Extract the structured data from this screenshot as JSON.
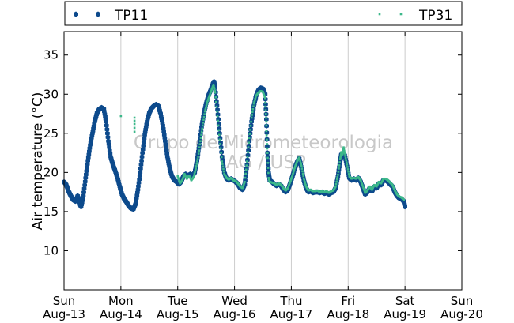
{
  "chart_data": {
    "type": "scatter",
    "ylabel": "Air temperature (°C)",
    "ylim": [
      5,
      38
    ],
    "yticks": [
      10,
      15,
      20,
      25,
      30,
      35
    ],
    "xlim_days": [
      13,
      20
    ],
    "xticks": [
      {
        "day": "Sun",
        "date": "Aug-13"
      },
      {
        "day": "Mon",
        "date": "Aug-14"
      },
      {
        "day": "Tue",
        "date": "Aug-15"
      },
      {
        "day": "Wed",
        "date": "Aug-16"
      },
      {
        "day": "Thu",
        "date": "Aug-17"
      },
      {
        "day": "Fri",
        "date": "Aug-18"
      },
      {
        "day": "Sat",
        "date": "Aug-19"
      },
      {
        "day": "Sun",
        "date": "Aug-20"
      }
    ],
    "grid": "vertical",
    "legend_position": "top",
    "watermark": [
      "Grupo de Micrometeorologia",
      "IAG / USP"
    ],
    "series": [
      {
        "name": "TP11",
        "color": "#0d4a8c",
        "marker": "hexagon",
        "points": [
          [
            13.0,
            18.8
          ],
          [
            13.04,
            18.4
          ],
          [
            13.08,
            17.6
          ],
          [
            13.12,
            17.0
          ],
          [
            13.16,
            16.5
          ],
          [
            13.2,
            16.3
          ],
          [
            13.24,
            17.0
          ],
          [
            13.28,
            16.0
          ],
          [
            13.3,
            15.6
          ],
          [
            13.34,
            17.0
          ],
          [
            13.38,
            19.3
          ],
          [
            13.42,
            21.5
          ],
          [
            13.46,
            23.5
          ],
          [
            13.5,
            25.0
          ],
          [
            13.54,
            26.5
          ],
          [
            13.58,
            27.6
          ],
          [
            13.62,
            28.1
          ],
          [
            13.66,
            28.3
          ],
          [
            13.7,
            28.1
          ],
          [
            13.74,
            26.5
          ],
          [
            13.78,
            24.0
          ],
          [
            13.82,
            22.0
          ],
          [
            13.86,
            21.0
          ],
          [
            13.9,
            20.2
          ],
          [
            13.94,
            19.3
          ],
          [
            13.98,
            18.2
          ],
          [
            14.02,
            17.2
          ],
          [
            14.06,
            16.6
          ],
          [
            14.1,
            16.2
          ],
          [
            14.14,
            15.7
          ],
          [
            14.18,
            15.4
          ],
          [
            14.22,
            15.3
          ],
          [
            14.26,
            16.0
          ],
          [
            14.3,
            17.8
          ],
          [
            14.34,
            20.0
          ],
          [
            14.38,
            22.5
          ],
          [
            14.42,
            24.8
          ],
          [
            14.46,
            26.5
          ],
          [
            14.5,
            27.6
          ],
          [
            14.54,
            28.2
          ],
          [
            14.58,
            28.5
          ],
          [
            14.62,
            28.7
          ],
          [
            14.66,
            28.5
          ],
          [
            14.7,
            27.5
          ],
          [
            14.74,
            26.0
          ],
          [
            14.78,
            24.0
          ],
          [
            14.82,
            22.0
          ],
          [
            14.86,
            20.5
          ],
          [
            14.9,
            19.5
          ],
          [
            14.94,
            19.0
          ],
          [
            14.98,
            18.8
          ],
          [
            15.02,
            18.5
          ],
          [
            15.06,
            18.8
          ],
          [
            15.1,
            19.5
          ],
          [
            15.14,
            19.8
          ],
          [
            15.18,
            19.5
          ],
          [
            15.22,
            19.8
          ],
          [
            15.26,
            19.6
          ],
          [
            15.3,
            20.0
          ],
          [
            15.34,
            21.5
          ],
          [
            15.38,
            23.5
          ],
          [
            15.42,
            25.8
          ],
          [
            15.46,
            27.5
          ],
          [
            15.5,
            28.8
          ],
          [
            15.54,
            29.8
          ],
          [
            15.58,
            30.5
          ],
          [
            15.62,
            31.3
          ],
          [
            15.64,
            31.6
          ],
          [
            15.66,
            30.8
          ],
          [
            15.7,
            28.0
          ],
          [
            15.74,
            25.0
          ],
          [
            15.78,
            22.0
          ],
          [
            15.82,
            20.0
          ],
          [
            15.86,
            19.2
          ],
          [
            15.9,
            19.0
          ],
          [
            15.94,
            19.2
          ],
          [
            15.98,
            19.0
          ],
          [
            16.02,
            18.8
          ],
          [
            16.06,
            18.5
          ],
          [
            16.1,
            18.0
          ],
          [
            16.14,
            17.8
          ],
          [
            16.18,
            18.5
          ],
          [
            16.22,
            21.0
          ],
          [
            16.26,
            24.0
          ],
          [
            16.3,
            26.5
          ],
          [
            16.34,
            28.5
          ],
          [
            16.38,
            29.8
          ],
          [
            16.42,
            30.5
          ],
          [
            16.46,
            30.8
          ],
          [
            16.5,
            30.7
          ],
          [
            16.54,
            30.0
          ],
          [
            16.56,
            26.8
          ],
          [
            16.58,
            22.5
          ],
          [
            16.6,
            20.0
          ],
          [
            16.62,
            19.0
          ],
          [
            16.66,
            18.8
          ],
          [
            16.7,
            18.5
          ],
          [
            16.74,
            18.3
          ],
          [
            16.78,
            18.5
          ],
          [
            16.82,
            18.3
          ],
          [
            16.86,
            17.8
          ],
          [
            16.9,
            17.5
          ],
          [
            16.94,
            17.8
          ],
          [
            16.98,
            18.6
          ],
          [
            17.02,
            19.5
          ],
          [
            17.06,
            20.5
          ],
          [
            17.1,
            21.3
          ],
          [
            17.14,
            21.8
          ],
          [
            17.18,
            20.5
          ],
          [
            17.22,
            19.0
          ],
          [
            17.26,
            18.0
          ],
          [
            17.3,
            17.5
          ],
          [
            17.34,
            17.6
          ],
          [
            17.38,
            17.4
          ],
          [
            17.42,
            17.5
          ],
          [
            17.46,
            17.5
          ],
          [
            17.5,
            17.4
          ],
          [
            17.54,
            17.5
          ],
          [
            17.58,
            17.3
          ],
          [
            17.62,
            17.4
          ],
          [
            17.66,
            17.2
          ],
          [
            17.7,
            17.4
          ],
          [
            17.74,
            17.5
          ],
          [
            17.78,
            18.0
          ],
          [
            17.82,
            19.5
          ],
          [
            17.86,
            21.5
          ],
          [
            17.88,
            22.3
          ],
          [
            17.9,
            22.0
          ],
          [
            17.94,
            22.2
          ],
          [
            17.98,
            20.8
          ],
          [
            18.02,
            19.3
          ],
          [
            18.06,
            19.0
          ],
          [
            18.1,
            19.2
          ],
          [
            18.14,
            19.0
          ],
          [
            18.18,
            19.3
          ],
          [
            18.22,
            18.8
          ],
          [
            18.26,
            18.0
          ],
          [
            18.3,
            17.2
          ],
          [
            18.34,
            17.5
          ],
          [
            18.38,
            18.0
          ],
          [
            18.42,
            17.6
          ],
          [
            18.46,
            18.2
          ],
          [
            18.5,
            18.0
          ],
          [
            18.54,
            18.6
          ],
          [
            18.58,
            18.4
          ],
          [
            18.62,
            19.0
          ],
          [
            18.66,
            19.0
          ],
          [
            18.7,
            18.8
          ],
          [
            18.74,
            18.5
          ],
          [
            18.78,
            18.2
          ],
          [
            18.82,
            17.5
          ],
          [
            18.86,
            17.0
          ],
          [
            18.9,
            16.7
          ],
          [
            18.94,
            16.6
          ],
          [
            18.98,
            16.3
          ],
          [
            19.0,
            15.6
          ]
        ]
      },
      {
        "name": "TP31",
        "color": "#3cb88a",
        "marker": "square",
        "points": [
          [
            14.0,
            27.2
          ],
          [
            14.24,
            27.0
          ],
          [
            14.24,
            26.6
          ],
          [
            14.24,
            26.2
          ],
          [
            14.24,
            25.7
          ],
          [
            14.24,
            25.2
          ],
          [
            15.0,
            19.5
          ],
          [
            15.04,
            18.6
          ],
          [
            15.08,
            19.0
          ],
          [
            15.12,
            19.8
          ],
          [
            15.16,
            19.2
          ],
          [
            15.2,
            19.6
          ],
          [
            15.24,
            19.0
          ],
          [
            15.28,
            19.4
          ],
          [
            15.32,
            20.5
          ],
          [
            15.36,
            22.0
          ],
          [
            15.4,
            24.0
          ],
          [
            15.44,
            26.0
          ],
          [
            15.48,
            27.8
          ],
          [
            15.52,
            29.0
          ],
          [
            15.56,
            29.8
          ],
          [
            15.6,
            30.6
          ],
          [
            15.63,
            31.2
          ],
          [
            15.66,
            30.2
          ],
          [
            15.7,
            27.2
          ],
          [
            15.74,
            24.2
          ],
          [
            15.78,
            21.4
          ],
          [
            15.82,
            19.8
          ],
          [
            15.86,
            19.3
          ],
          [
            15.9,
            19.1
          ],
          [
            15.94,
            19.3
          ],
          [
            15.98,
            19.0
          ],
          [
            16.02,
            18.9
          ],
          [
            16.06,
            18.6
          ],
          [
            16.1,
            18.2
          ],
          [
            16.14,
            18.0
          ],
          [
            16.18,
            18.8
          ],
          [
            16.22,
            21.4
          ],
          [
            16.26,
            24.4
          ],
          [
            16.3,
            27.0
          ],
          [
            16.34,
            28.8
          ],
          [
            16.38,
            29.8
          ],
          [
            16.42,
            30.2
          ],
          [
            16.46,
            30.4
          ],
          [
            16.5,
            30.3
          ],
          [
            16.54,
            29.5
          ],
          [
            16.54,
            28.9
          ],
          [
            16.56,
            26.5
          ],
          [
            16.56,
            26.0
          ],
          [
            16.56,
            25.3
          ],
          [
            16.58,
            22.5
          ],
          [
            16.6,
            19.3
          ],
          [
            16.62,
            18.8
          ],
          [
            16.66,
            18.7
          ],
          [
            16.7,
            18.6
          ],
          [
            16.74,
            18.4
          ],
          [
            16.78,
            18.6
          ],
          [
            16.82,
            18.4
          ],
          [
            16.86,
            18.0
          ],
          [
            16.9,
            17.7
          ],
          [
            16.94,
            18.0
          ],
          [
            16.98,
            18.8
          ],
          [
            17.02,
            19.6
          ],
          [
            17.06,
            20.6
          ],
          [
            17.1,
            21.4
          ],
          [
            17.14,
            21.9
          ],
          [
            17.18,
            20.8
          ],
          [
            17.22,
            19.2
          ],
          [
            17.26,
            18.2
          ],
          [
            17.3,
            17.7
          ],
          [
            17.34,
            17.8
          ],
          [
            17.38,
            17.6
          ],
          [
            17.42,
            17.6
          ],
          [
            17.46,
            17.7
          ],
          [
            17.5,
            17.5
          ],
          [
            17.54,
            17.6
          ],
          [
            17.58,
            17.5
          ],
          [
            17.62,
            17.6
          ],
          [
            17.66,
            17.4
          ],
          [
            17.7,
            17.6
          ],
          [
            17.74,
            17.7
          ],
          [
            17.78,
            18.2
          ],
          [
            17.82,
            19.7
          ],
          [
            17.86,
            21.7
          ],
          [
            17.88,
            22.6
          ],
          [
            17.9,
            22.3
          ],
          [
            17.92,
            23.2
          ],
          [
            17.94,
            22.4
          ],
          [
            17.98,
            21.0
          ],
          [
            18.02,
            19.5
          ],
          [
            18.06,
            19.2
          ],
          [
            18.1,
            19.3
          ],
          [
            18.14,
            19.2
          ],
          [
            18.18,
            19.4
          ],
          [
            18.22,
            19.0
          ],
          [
            18.26,
            18.2
          ],
          [
            18.3,
            17.4
          ],
          [
            18.34,
            17.7
          ],
          [
            18.38,
            18.2
          ],
          [
            18.42,
            17.8
          ],
          [
            18.46,
            18.4
          ],
          [
            18.5,
            18.2
          ],
          [
            18.54,
            18.8
          ],
          [
            18.58,
            18.6
          ],
          [
            18.62,
            19.2
          ],
          [
            18.66,
            19.2
          ],
          [
            18.7,
            19.0
          ],
          [
            18.74,
            18.7
          ],
          [
            18.78,
            18.4
          ],
          [
            18.82,
            17.7
          ],
          [
            18.86,
            17.2
          ],
          [
            18.9,
            16.9
          ],
          [
            18.94,
            16.8
          ],
          [
            18.98,
            16.5
          ]
        ]
      }
    ]
  }
}
